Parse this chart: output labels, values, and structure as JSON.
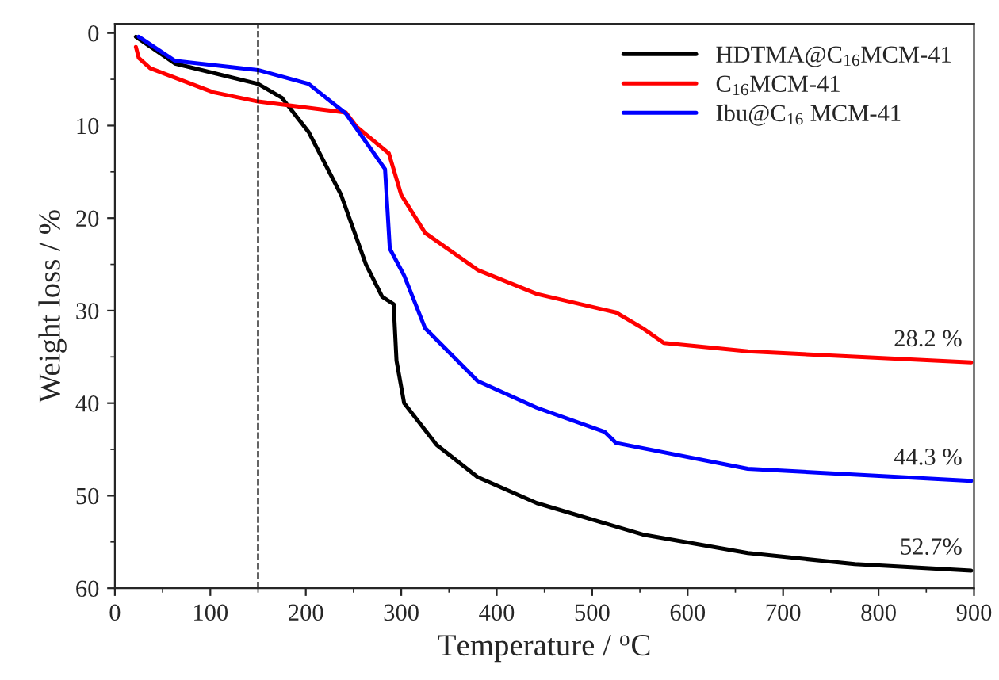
{
  "chart_data": {
    "type": "line",
    "xlabel": "Temperature / $^{o}$C",
    "ylabel": "Weight loss / %",
    "xlim": [
      0,
      900
    ],
    "xticks": [
      0,
      100,
      200,
      300,
      400,
      500,
      600,
      700,
      800,
      900
    ],
    "ylim": [
      60,
      -1
    ],
    "yticks": [
      0,
      10,
      20,
      30,
      40,
      50,
      60
    ],
    "grid": false,
    "legend": "top right",
    "line_style": "solid",
    "marker": "none",
    "series": [
      {
        "name": "HDTMA@C$_{16}$MCM-41",
        "color": "#000000",
        "x": [
          22,
          63,
          150,
          175,
          203,
          237,
          263,
          280,
          292,
          295,
          303,
          337,
          380,
          442,
          553,
          663,
          775,
          897
        ],
        "values": [
          0.4,
          3.3,
          5.5,
          7,
          10.7,
          17.5,
          25,
          28.5,
          29.3,
          35.4,
          40,
          44.5,
          48,
          50.8,
          54.2,
          56.2,
          57.4,
          58.1
        ]
      },
      {
        "name": "C$_{16}$MCM-41",
        "color": "#ff0000",
        "x": [
          22,
          25,
          37,
          103,
          150,
          242,
          253,
          287,
          300,
          325,
          380,
          442,
          525,
          553,
          575,
          663,
          897
        ],
        "values": [
          1.5,
          2.7,
          3.8,
          6.4,
          7.4,
          8.6,
          10.1,
          13,
          17.5,
          21.6,
          25.6,
          28.2,
          30.2,
          31.9,
          33.5,
          34.4,
          35.6
        ]
      },
      {
        "name": "Ibu@C$_{16}$ MCM-41",
        "color": "#0000ff",
        "x": [
          25,
          63,
          150,
          203,
          242,
          283,
          288,
          303,
          325,
          380,
          442,
          513,
          525,
          663,
          897
        ],
        "values": [
          0.4,
          3,
          4,
          5.5,
          8.7,
          14.7,
          23.3,
          26.2,
          31.9,
          37.6,
          40.5,
          43.1,
          44.3,
          47.1,
          48.4
        ]
      }
    ],
    "ref_lines": [
      {
        "axis": "x",
        "value": 150,
        "color": "#000000",
        "line_style": "dashed"
      }
    ],
    "annotations": [
      "28.2 %",
      "44.3 %",
      "52.7%"
    ]
  }
}
